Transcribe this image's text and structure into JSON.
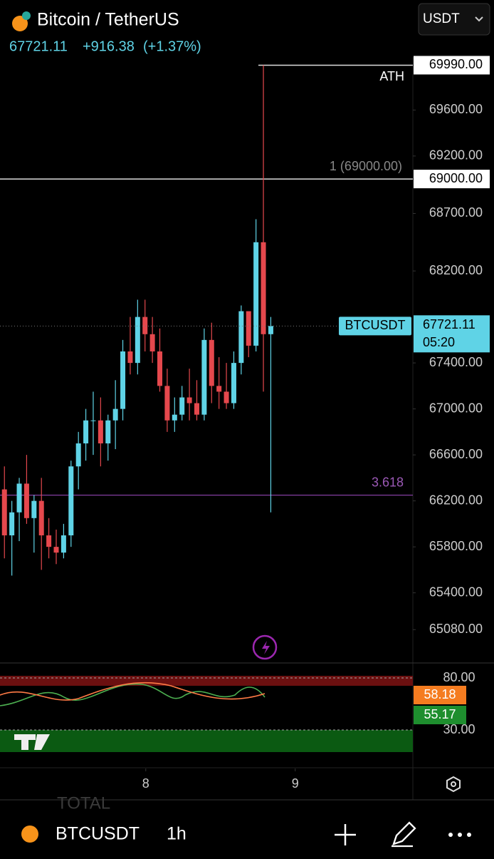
{
  "header": {
    "title": "Bitcoin / TetherUS",
    "last": "67721.11",
    "change": "+916.38",
    "change_pct": "(+1.37%)",
    "currency": "USDT"
  },
  "chart_data": {
    "type": "candlestick",
    "open": [
      66300,
      65900,
      66100,
      66350,
      66050,
      66200,
      65900,
      65800,
      65750,
      65900,
      66500,
      66700,
      66900,
      66900,
      66700,
      66900,
      67000,
      67500,
      67400,
      67800,
      67650,
      67500,
      67200,
      66900,
      66950,
      67100,
      67050,
      66950,
      67600,
      67200,
      67150,
      67050,
      67400,
      67850,
      67550,
      68450,
      67650
    ],
    "high": [
      66500,
      66200,
      66400,
      66600,
      66250,
      66400,
      66050,
      65950,
      66000,
      66550,
      66800,
      67000,
      67150,
      67100,
      66950,
      67250,
      67600,
      67800,
      67950,
      67950,
      67800,
      67700,
      67350,
      67100,
      67200,
      67350,
      67250,
      67700,
      67750,
      67450,
      67400,
      67500,
      67900,
      67850,
      68650,
      69990,
      67800
    ],
    "low": [
      65700,
      65550,
      65850,
      66000,
      65750,
      65600,
      65700,
      65650,
      65700,
      65800,
      66300,
      66550,
      66600,
      66500,
      66550,
      66650,
      66900,
      67300,
      67300,
      67500,
      67400,
      67150,
      66800,
      66800,
      66900,
      66900,
      66900,
      66900,
      67050,
      67000,
      67000,
      67000,
      67300,
      67450,
      67500,
      67150,
      66100
    ],
    "close": [
      65900,
      66100,
      66350,
      66050,
      66200,
      65900,
      65800,
      65750,
      65900,
      66500,
      66700,
      66900,
      66900,
      66700,
      66900,
      67000,
      67500,
      67400,
      67800,
      67650,
      67500,
      67200,
      66900,
      66950,
      67100,
      67050,
      66950,
      67600,
      67200,
      67150,
      67050,
      67400,
      67850,
      67550,
      68450,
      67650,
      67721.11
    ],
    "up_color": "#5fd3e6",
    "down_color": "#e5484d",
    "ylim": [
      64790,
      70030
    ],
    "yticks": [
      {
        "value": 69600,
        "label": "69600.00"
      },
      {
        "value": 69200,
        "label": "69200.00"
      },
      {
        "value": 68700,
        "label": "68700.00"
      },
      {
        "value": 68200,
        "label": "68200.00"
      },
      {
        "value": 67400,
        "label": "67400.00"
      },
      {
        "value": 67000,
        "label": "67000.00"
      },
      {
        "value": 66600,
        "label": "66600.00"
      },
      {
        "value": 66200,
        "label": "66200.00"
      },
      {
        "value": 65800,
        "label": "65800.00"
      },
      {
        "value": 65400,
        "label": "65400.00"
      },
      {
        "value": 65080,
        "label": "65080.00"
      }
    ],
    "xlim": [
      -0.6,
      55.2
    ],
    "xticks": [
      {
        "value": 19.1,
        "label": "8"
      },
      {
        "value": 39.3,
        "label": "9"
      }
    ],
    "price_lines": [
      {
        "value": 69990,
        "label": "69990.00",
        "note": "ATH"
      },
      {
        "value": 69000,
        "label": "69000.00",
        "note": "1 (69000.00)"
      },
      {
        "value": 66250,
        "note": "3.618"
      }
    ],
    "last_price": {
      "value": 67721.11,
      "symbol": "BTCUSDT",
      "label": "67721.11",
      "countdown": "05:20"
    },
    "rsi": {
      "levels": [
        {
          "value": 80,
          "label": "80.00"
        },
        {
          "value": 30,
          "label": "30.00"
        }
      ],
      "readings": [
        {
          "value": 58.18,
          "label": "58.18"
        },
        {
          "value": 55.17,
          "label": "55.17"
        }
      ]
    }
  },
  "footer": {
    "faded": "TOTAL",
    "symbol": "BTCUSDT",
    "interval": "1h"
  }
}
